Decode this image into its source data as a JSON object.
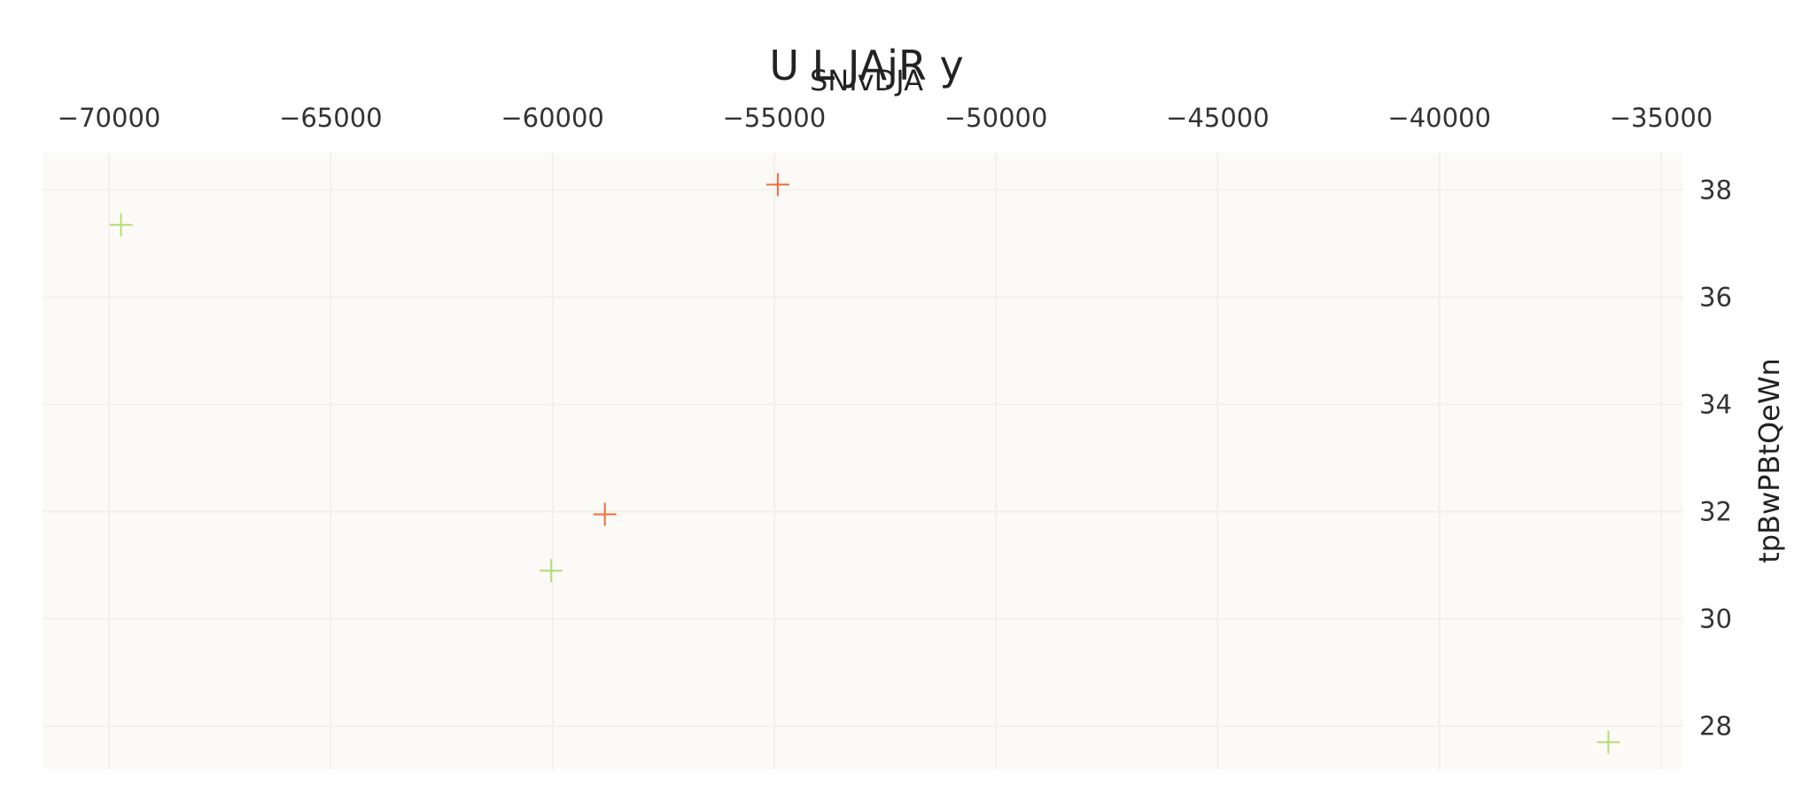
{
  "chart_data": {
    "type": "scatter",
    "title": "U L JAjR y",
    "xlabel": "SNIvDJA",
    "ylabel": "tpBwPBtQeWn",
    "xlim": [
      -71500,
      -34500
    ],
    "ylim": [
      27.2,
      38.7
    ],
    "x_ticks": [
      -70000,
      -65000,
      -60000,
      -55000,
      -50000,
      -45000,
      -40000,
      -35000
    ],
    "x_tick_labels": [
      "−70000",
      "−65000",
      "−60000",
      "−55000",
      "−50000",
      "−45000",
      "−40000",
      "−35000"
    ],
    "y_ticks": [
      28,
      30,
      32,
      34,
      36,
      38
    ],
    "y_tick_labels": [
      "28",
      "30",
      "32",
      "34",
      "36",
      "38"
    ],
    "x_axis_position": "top",
    "y_axis_position": "right",
    "grid": true,
    "marker": "cross",
    "background_color": "#fbfaf7",
    "grid_color": "#f1eee8",
    "series": [
      {
        "color": "#f26b3a",
        "points": [
          {
            "x": -54920,
            "y": 38.1
          },
          {
            "x": -58820,
            "y": 31.95
          }
        ]
      },
      {
        "color": "#b5dc73",
        "points": [
          {
            "x": -69730,
            "y": 37.35
          },
          {
            "x": -60030,
            "y": 30.9
          },
          {
            "x": -36190,
            "y": 27.7
          }
        ]
      }
    ]
  }
}
